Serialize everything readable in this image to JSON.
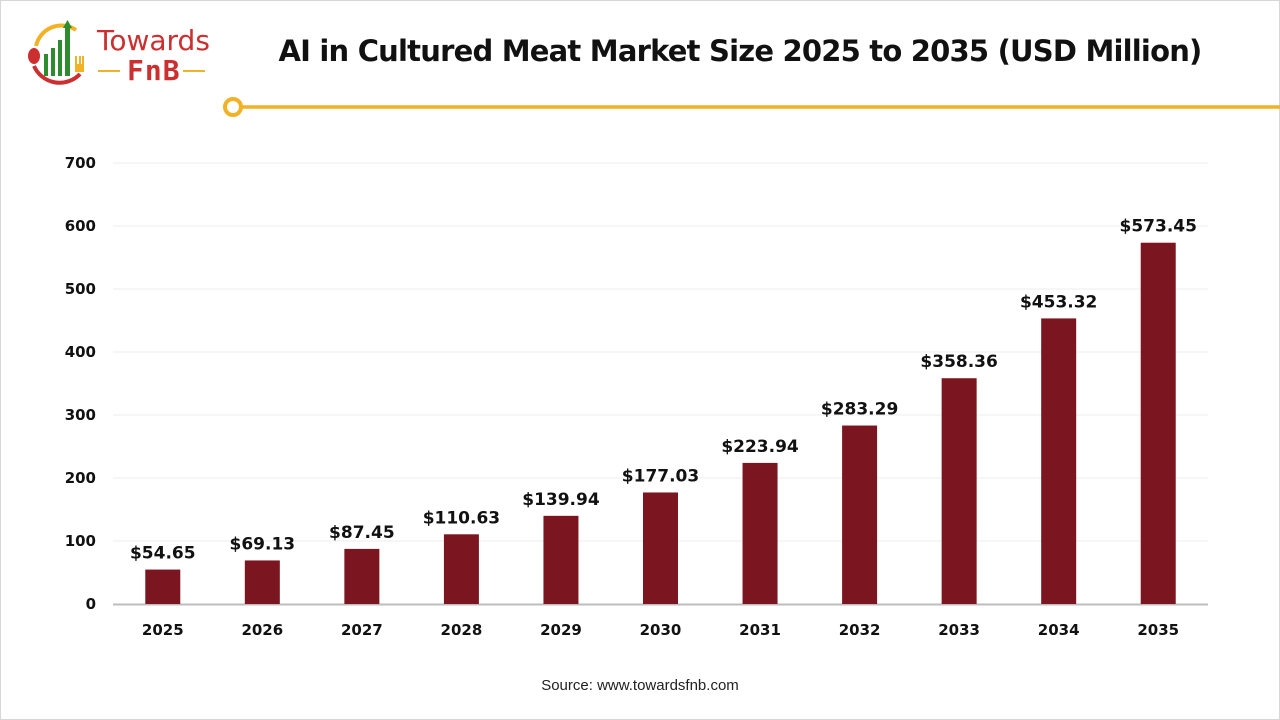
{
  "brand": {
    "line1": "Towards",
    "line2": "FnB"
  },
  "source": "Source: www.towardsfnb.com",
  "colors": {
    "bar": "#7b1620",
    "accent": "#f2b225",
    "brand_red": "#cc2f2f",
    "brand_green": "#2e8b2e"
  },
  "chart_data": {
    "type": "bar",
    "title": "AI in Cultured Meat Market Size 2025 to 2035 (USD Million)",
    "categories": [
      "2025",
      "2026",
      "2027",
      "2028",
      "2029",
      "2030",
      "2031",
      "2032",
      "2033",
      "2034",
      "2035"
    ],
    "values": [
      54.65,
      69.13,
      87.45,
      110.63,
      139.94,
      177.03,
      223.94,
      283.29,
      358.36,
      453.32,
      573.45
    ],
    "data_labels": [
      "$54.65",
      "$69.13",
      "$87.45",
      "$110.63",
      "$139.94",
      "$177.03",
      "$223.94",
      "$283.29",
      "$358.36",
      "$453.32",
      "$573.45"
    ],
    "xlabel": "",
    "ylabel": "",
    "ylim": [
      0,
      700
    ],
    "yticks": [
      "0",
      "100",
      "200",
      "300",
      "400",
      "500",
      "600",
      "700"
    ],
    "grid": true,
    "legend": "none"
  }
}
